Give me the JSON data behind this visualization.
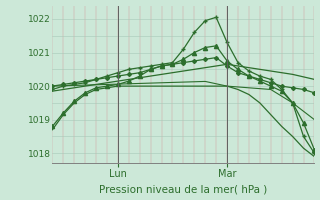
{
  "xlabel": "Pression niveau de la mer( hPa )",
  "bg_color": "#cce8d8",
  "grid_h_color": "#a8c8b8",
  "grid_v_color": "#d4a0a0",
  "line_color": "#2d6e2d",
  "ylim": [
    1017.7,
    1022.4
  ],
  "xlim": [
    0,
    72
  ],
  "yticks": [
    1018,
    1019,
    1020,
    1021,
    1022
  ],
  "vlines": [
    {
      "x": 18,
      "label": "Lun"
    },
    {
      "x": 48,
      "label": "Mar"
    }
  ],
  "series": [
    {
      "x": [
        0,
        6,
        12,
        18,
        24,
        30,
        36,
        42,
        48,
        54,
        60,
        66,
        72
      ],
      "y": [
        1019.85,
        1019.95,
        1020.05,
        1020.15,
        1020.25,
        1020.35,
        1020.45,
        1020.55,
        1020.65,
        1020.55,
        1020.45,
        1020.35,
        1020.2
      ],
      "marker": null,
      "linestyle": "-",
      "linewidth": 0.9
    },
    {
      "x": [
        0,
        3,
        6,
        9,
        12,
        15,
        18,
        21,
        24,
        27,
        30,
        33,
        36,
        39,
        42,
        45,
        48,
        51,
        54,
        57,
        60,
        63,
        66,
        69,
        72
      ],
      "y": [
        1019.9,
        1020.0,
        1020.05,
        1020.1,
        1020.2,
        1020.3,
        1020.4,
        1020.5,
        1020.55,
        1020.6,
        1020.65,
        1020.7,
        1021.1,
        1021.6,
        1021.95,
        1022.05,
        1021.3,
        1020.7,
        1020.45,
        1020.3,
        1020.2,
        1019.9,
        1019.5,
        1018.5,
        1018.0
      ],
      "marker": "+",
      "linestyle": "-",
      "linewidth": 0.9,
      "markersize": 3.5
    },
    {
      "x": [
        0,
        3,
        6,
        9,
        12,
        15,
        18,
        21,
        24,
        27,
        30,
        33,
        36,
        39,
        42,
        45,
        48,
        51,
        54,
        57,
        60,
        63,
        66,
        69,
        72
      ],
      "y": [
        1018.8,
        1019.2,
        1019.55,
        1019.8,
        1019.95,
        1020.0,
        1020.05,
        1020.15,
        1020.3,
        1020.5,
        1020.6,
        1020.65,
        1020.8,
        1021.0,
        1021.15,
        1021.2,
        1020.75,
        1020.5,
        1020.3,
        1020.15,
        1020.0,
        1019.85,
        1019.5,
        1018.9,
        1018.1
      ],
      "marker": "^",
      "linestyle": "-",
      "linewidth": 0.9,
      "markersize": 3
    },
    {
      "x": [
        0,
        3,
        6,
        9,
        12,
        15,
        18,
        21,
        24,
        27,
        30,
        33,
        36,
        39,
        42,
        45,
        48,
        51,
        54,
        57,
        60,
        63,
        66,
        69,
        72
      ],
      "y": [
        1020.0,
        1020.05,
        1020.1,
        1020.15,
        1020.2,
        1020.25,
        1020.3,
        1020.35,
        1020.4,
        1020.5,
        1020.6,
        1020.65,
        1020.7,
        1020.75,
        1020.8,
        1020.85,
        1020.6,
        1020.4,
        1020.3,
        1020.2,
        1020.1,
        1020.0,
        1019.95,
        1019.9,
        1019.8
      ],
      "marker": "D",
      "linestyle": "-",
      "linewidth": 0.9,
      "markersize": 2.0
    },
    {
      "x": [
        0,
        3,
        6,
        9,
        12,
        15,
        18,
        21,
        24,
        27,
        30,
        33,
        36,
        39,
        42,
        45,
        48,
        51,
        54,
        57,
        60,
        63,
        66,
        69,
        72
      ],
      "y": [
        1018.7,
        1019.15,
        1019.5,
        1019.75,
        1019.9,
        1019.95,
        1020.0,
        1020.0,
        1020.0,
        1020.0,
        1020.0,
        1020.0,
        1020.0,
        1020.0,
        1020.0,
        1020.0,
        1020.0,
        1019.9,
        1019.75,
        1019.5,
        1019.15,
        1018.8,
        1018.5,
        1018.15,
        1017.9
      ],
      "marker": null,
      "linestyle": "-",
      "linewidth": 0.9
    },
    {
      "x": [
        0,
        6,
        12,
        18,
        24,
        30,
        36,
        42,
        48,
        54,
        60,
        66,
        72
      ],
      "y": [
        1020.0,
        1020.02,
        1020.04,
        1020.06,
        1020.08,
        1020.1,
        1020.12,
        1020.14,
        1020.0,
        1019.95,
        1019.9,
        1019.5,
        1019.0
      ],
      "marker": null,
      "linestyle": "-",
      "linewidth": 0.8
    }
  ]
}
